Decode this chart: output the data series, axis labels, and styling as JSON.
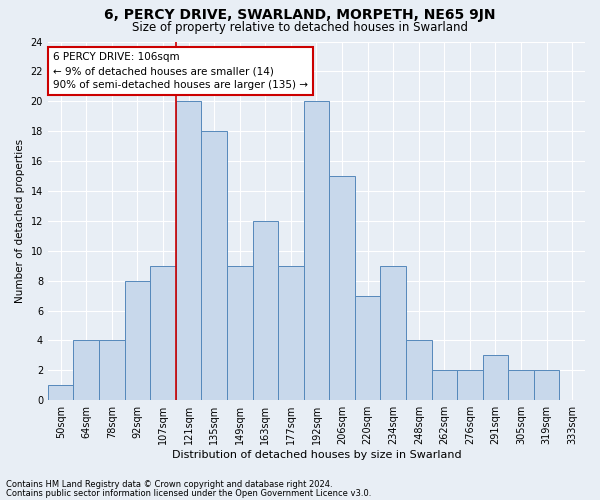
{
  "title": "6, PERCY DRIVE, SWARLAND, MORPETH, NE65 9JN",
  "subtitle": "Size of property relative to detached houses in Swarland",
  "xlabel": "Distribution of detached houses by size in Swarland",
  "ylabel": "Number of detached properties",
  "categories": [
    "50sqm",
    "64sqm",
    "78sqm",
    "92sqm",
    "107sqm",
    "121sqm",
    "135sqm",
    "149sqm",
    "163sqm",
    "177sqm",
    "192sqm",
    "206sqm",
    "220sqm",
    "234sqm",
    "248sqm",
    "262sqm",
    "276sqm",
    "291sqm",
    "305sqm",
    "319sqm",
    "333sqm"
  ],
  "bar_heights": [
    1,
    4,
    4,
    8,
    9,
    20,
    18,
    9,
    12,
    9,
    20,
    15,
    7,
    9,
    4,
    2,
    2,
    3,
    2,
    2,
    0
  ],
  "bar_color": "#c8d8eb",
  "bar_edge_color": "#5588bb",
  "bar_width": 1.0,
  "ylim": [
    0,
    24
  ],
  "yticks": [
    0,
    2,
    4,
    6,
    8,
    10,
    12,
    14,
    16,
    18,
    20,
    22,
    24
  ],
  "vline_x": 4.5,
  "vline_color": "#cc0000",
  "annotation_text": "6 PERCY DRIVE: 106sqm\n← 9% of detached houses are smaller (14)\n90% of semi-detached houses are larger (135) →",
  "annotation_box_color": "#ffffff",
  "annotation_box_edge": "#cc0000",
  "footer1": "Contains HM Land Registry data © Crown copyright and database right 2024.",
  "footer2": "Contains public sector information licensed under the Open Government Licence v3.0.",
  "background_color": "#e8eef5",
  "grid_color": "#ffffff",
  "title_fontsize": 10,
  "subtitle_fontsize": 8.5,
  "xlabel_fontsize": 8,
  "ylabel_fontsize": 7.5,
  "tick_fontsize": 7,
  "annotation_fontsize": 7.5,
  "footer_fontsize": 6
}
